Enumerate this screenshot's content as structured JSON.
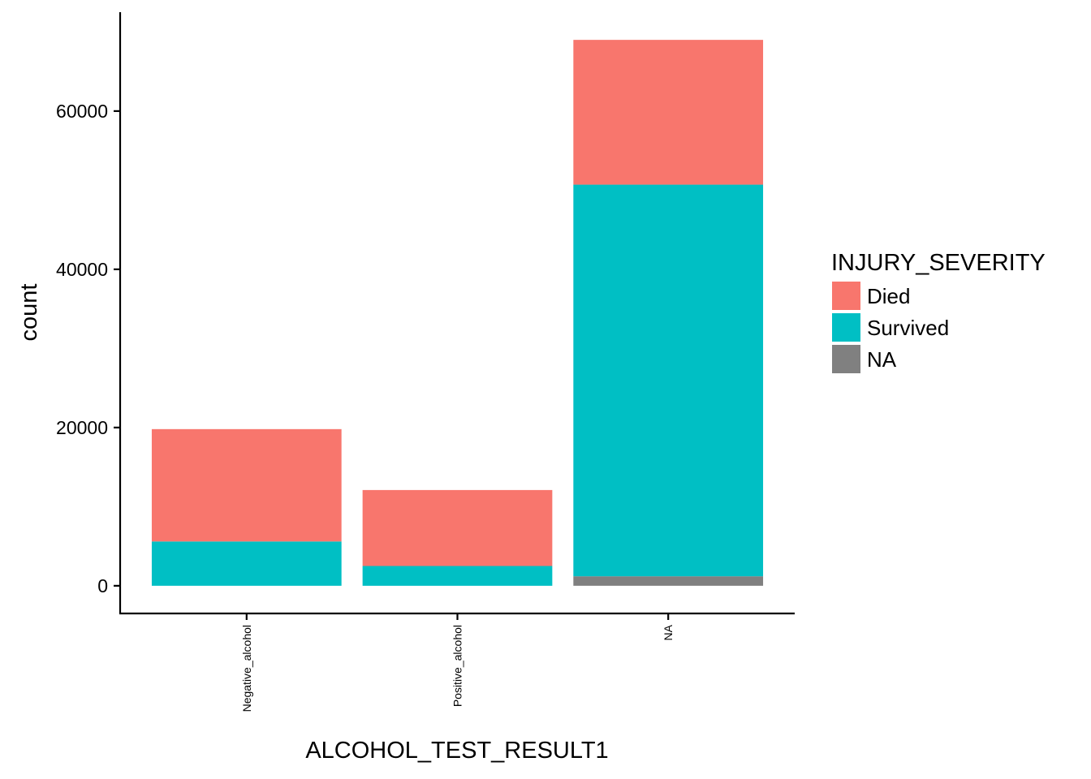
{
  "chart_data": {
    "type": "bar",
    "stacked": true,
    "categories": [
      "Negative_alcohol",
      "Positive_alcohol",
      "NA"
    ],
    "series": [
      {
        "name": "Died",
        "color": "#F8766D",
        "values": [
          14200,
          9600,
          18300
        ]
      },
      {
        "name": "Survived",
        "color": "#00BFC4",
        "values": [
          5600,
          2500,
          49500
        ]
      },
      {
        "name": "NA",
        "color": "#808080",
        "values": [
          0,
          0,
          1200
        ]
      }
    ],
    "xlabel": "ALCOHOL_TEST_RESULT1",
    "ylabel": "count",
    "ylim": [
      -3500,
      72500
    ],
    "yticks": [
      0,
      20000,
      40000,
      60000
    ],
    "ytick_labels": [
      "0",
      "20000",
      "40000",
      "60000"
    ],
    "legend": {
      "title": "INJURY_SEVERITY",
      "placement": "right"
    },
    "grid": false
  }
}
